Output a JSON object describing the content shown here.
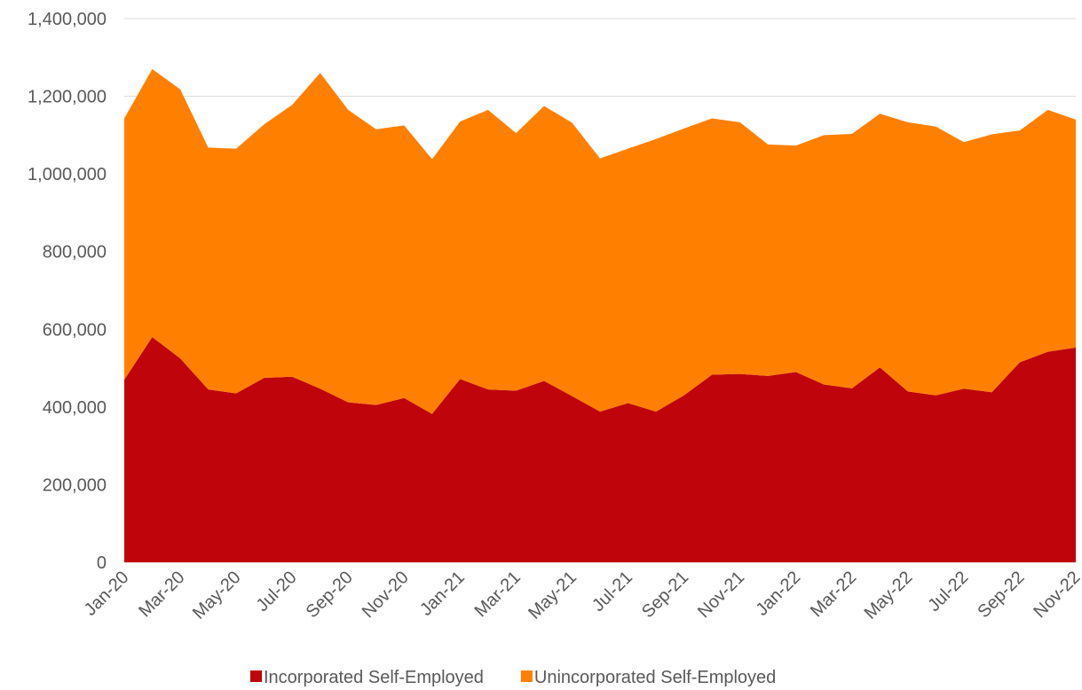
{
  "chart_data": {
    "type": "stacked_area",
    "categories": [
      "Jan-20",
      null,
      "Mar-20",
      null,
      "May-20",
      null,
      "Jul-20",
      null,
      "Sep-20",
      null,
      "Nov-20",
      null,
      "Jan-21",
      null,
      "Mar-21",
      null,
      "May-21",
      null,
      "Jul-21",
      null,
      "Sep-21",
      null,
      "Nov-21",
      null,
      "Jan-22",
      null,
      "Mar-22",
      null,
      "May-22",
      null,
      "Jul-22",
      null,
      "Sep-22",
      null,
      "Nov-22"
    ],
    "series": [
      {
        "name": "Incorporated Self-Employed",
        "color": "#c0040c",
        "values": [
          470000,
          580000,
          525000,
          445000,
          435000,
          475000,
          478000,
          447000,
          412000,
          405000,
          423000,
          382000,
          472000,
          445000,
          442000,
          467000,
          428000,
          388000,
          410000,
          388000,
          430000,
          483000,
          485000,
          480000,
          490000,
          458000,
          448000,
          502000,
          440000,
          430000,
          447000,
          438000,
          515000,
          542000,
          553000
        ]
      },
      {
        "name": "Unincorporated Self-Employed",
        "color": "#ff8000",
        "values": [
          673000,
          690000,
          693000,
          623000,
          630000,
          653000,
          700000,
          813000,
          753000,
          710000,
          702000,
          656000,
          663000,
          720000,
          663000,
          708000,
          704000,
          652000,
          655000,
          702000,
          687000,
          660000,
          648000,
          596000,
          583000,
          642000,
          655000,
          653000,
          693000,
          692000,
          635000,
          664000,
          597000,
          623000,
          587000
        ]
      }
    ],
    "ylim": [
      0,
      1400000
    ],
    "yticks": [
      0,
      {
        "value": 200000,
        "label": "200,000"
      },
      {
        "value": 400000,
        "label": "400,000"
      },
      {
        "value": 600000,
        "label": "600,000"
      },
      {
        "value": 800000,
        "label": "800,000"
      },
      {
        "value": 1000000,
        "label": "1,000,000"
      },
      {
        "value": 1200000,
        "label": "1,200,000"
      },
      {
        "value": 1400000,
        "label": "1,400,000"
      }
    ],
    "grid": true,
    "stacked": true,
    "legend": "bottom"
  }
}
